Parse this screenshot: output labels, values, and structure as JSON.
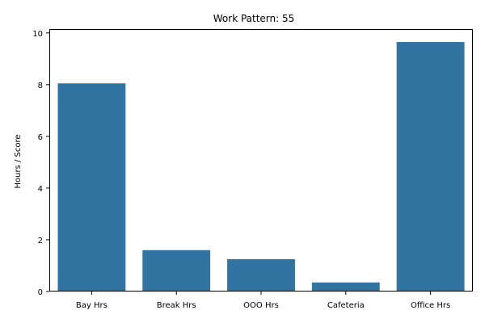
{
  "chart_data": {
    "type": "bar",
    "title": "Work Pattern: 55",
    "xlabel": "",
    "ylabel": "Hours / Score",
    "categories": [
      "Bay Hrs",
      "Break Hrs",
      "OOO Hrs",
      "Cafeteria",
      "Office Hrs"
    ],
    "values": [
      8.05,
      1.6,
      1.25,
      0.35,
      9.65
    ],
    "ylim": [
      0,
      10.15
    ],
    "yticks": [
      0,
      2,
      4,
      6,
      8,
      10
    ],
    "bar_color": "#3274a1",
    "grid": false,
    "legend": "none"
  }
}
